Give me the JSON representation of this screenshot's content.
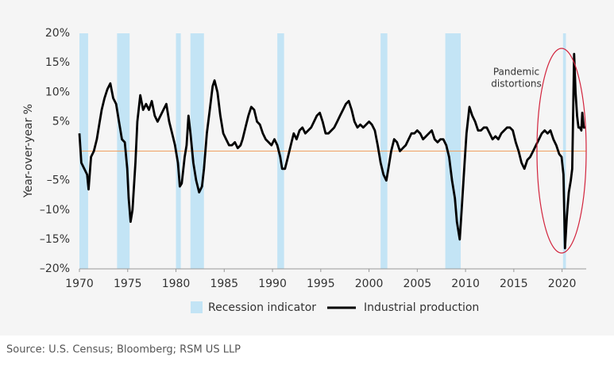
{
  "chart_data": {
    "type": "line",
    "y_axis_label": "Year-over-year %",
    "source": "Source: U.S. Census; Bloomberg; RSM US LLP",
    "annotation": [
      "Pandemic",
      "distortions"
    ],
    "xlim": [
      1970,
      2022.5
    ],
    "xticks": [
      1970,
      1975,
      1980,
      1985,
      1990,
      1995,
      2000,
      2005,
      2010,
      2015,
      2020
    ],
    "ylim": [
      -20,
      20
    ],
    "yticks": [
      {
        "value": 20,
        "label": "20%"
      },
      {
        "value": 15,
        "label": "15%"
      },
      {
        "value": 10,
        "label": "10%"
      },
      {
        "value": 5,
        "label": "5%"
      },
      {
        "value": -5,
        "label": "–5%"
      },
      {
        "value": -10,
        "label": "–10%"
      },
      {
        "value": -15,
        "label": "–15%"
      },
      {
        "value": -20,
        "label": "–20%"
      }
    ],
    "zero_line_color": "#f0a060",
    "recession_name": "Recession indicator",
    "recession_color": "#c3e4f5",
    "recessions": [
      [
        1970.0,
        1970.9
      ],
      [
        1973.9,
        1975.2
      ],
      [
        1980.0,
        1980.5
      ],
      [
        1981.5,
        1982.9
      ],
      [
        1990.5,
        1991.2
      ],
      [
        2001.2,
        2001.9
      ],
      [
        2007.9,
        2009.5
      ],
      [
        2020.1,
        2020.4
      ]
    ],
    "series": [
      {
        "name": "Industrial production",
        "color": "#000000",
        "x": [
          1970.0,
          1970.2,
          1970.5,
          1970.8,
          1970.95,
          1971.2,
          1971.5,
          1971.8,
          1972.0,
          1972.3,
          1972.6,
          1972.9,
          1973.2,
          1973.5,
          1973.8,
          1974.1,
          1974.4,
          1974.7,
          1974.95,
          1975.1,
          1975.3,
          1975.5,
          1975.8,
          1976.0,
          1976.3,
          1976.6,
          1976.9,
          1977.2,
          1977.5,
          1977.8,
          1978.1,
          1978.4,
          1978.7,
          1979.0,
          1979.3,
          1979.6,
          1979.9,
          1980.2,
          1980.4,
          1980.6,
          1980.9,
          1981.1,
          1981.3,
          1981.5,
          1981.8,
          1982.1,
          1982.4,
          1982.7,
          1982.9,
          1983.2,
          1983.5,
          1983.8,
          1984.0,
          1984.3,
          1984.6,
          1984.9,
          1985.2,
          1985.5,
          1985.8,
          1986.1,
          1986.4,
          1986.7,
          1986.9,
          1987.2,
          1987.5,
          1987.8,
          1988.1,
          1988.4,
          1988.7,
          1989.0,
          1989.3,
          1989.6,
          1989.9,
          1990.2,
          1990.5,
          1990.8,
          1991.0,
          1991.3,
          1991.6,
          1991.9,
          1992.2,
          1992.5,
          1992.8,
          1993.1,
          1993.4,
          1993.7,
          1994.0,
          1994.3,
          1994.6,
          1994.9,
          1995.2,
          1995.5,
          1995.8,
          1996.1,
          1996.4,
          1996.7,
          1997.0,
          1997.3,
          1997.6,
          1997.9,
          1998.2,
          1998.5,
          1998.8,
          1999.1,
          1999.4,
          1999.7,
          2000.0,
          2000.3,
          2000.6,
          2000.9,
          2001.2,
          2001.5,
          2001.8,
          2002.0,
          2002.3,
          2002.6,
          2002.9,
          2003.2,
          2003.5,
          2003.8,
          2004.1,
          2004.4,
          2004.7,
          2005.0,
          2005.3,
          2005.6,
          2005.9,
          2006.2,
          2006.5,
          2006.8,
          2007.1,
          2007.4,
          2007.7,
          2008.0,
          2008.3,
          2008.6,
          2008.9,
          2009.1,
          2009.4,
          2009.6,
          2009.9,
          2010.1,
          2010.4,
          2010.7,
          2011.0,
          2011.3,
          2011.6,
          2011.9,
          2012.2,
          2012.5,
          2012.8,
          2013.1,
          2013.4,
          2013.7,
          2014.0,
          2014.3,
          2014.6,
          2014.9,
          2015.2,
          2015.5,
          2015.8,
          2016.1,
          2016.4,
          2016.7,
          2017.0,
          2017.3,
          2017.6,
          2017.9,
          2018.2,
          2018.5,
          2018.8,
          2019.1,
          2019.4,
          2019.7,
          2019.95,
          2020.15,
          2020.3,
          2020.5,
          2020.7,
          2020.9,
          2021.05,
          2021.25,
          2021.4,
          2021.55,
          2021.7,
          2021.85,
          2022.0,
          2022.1,
          2022.25,
          2022.4
        ],
        "values": [
          3,
          -2,
          -3,
          -4,
          -6.5,
          -1,
          0,
          2,
          4,
          7,
          9,
          10.5,
          11.5,
          9,
          8,
          5,
          2,
          1.5,
          -3,
          -8,
          -12,
          -10,
          -2,
          5,
          9.5,
          7,
          8,
          7,
          8.5,
          6,
          5,
          6,
          7,
          8,
          5,
          3,
          1,
          -2,
          -6,
          -5.5,
          -1,
          1,
          6,
          3,
          -2,
          -5,
          -7,
          -6,
          -3,
          3,
          7,
          11,
          12,
          10,
          6,
          3,
          2,
          1,
          1,
          1.5,
          0.5,
          1,
          2,
          4,
          6,
          7.5,
          7,
          5,
          4.5,
          3,
          2,
          1.5,
          1,
          2,
          1,
          -1,
          -3,
          -3,
          -1,
          1,
          3,
          2,
          3.5,
          4,
          3,
          3.5,
          4,
          5,
          6,
          6.5,
          5,
          3,
          3,
          3.5,
          4,
          5,
          6,
          7,
          8,
          8.5,
          7,
          5,
          4,
          4.5,
          4,
          4.5,
          5,
          4.5,
          3.5,
          1,
          -2,
          -4,
          -5,
          -3,
          0,
          2,
          1.5,
          0,
          0.5,
          1,
          2,
          3,
          3,
          3.5,
          3,
          2,
          2.5,
          3,
          3.5,
          2,
          1.5,
          2,
          2,
          1,
          -1,
          -5,
          -8,
          -12,
          -15,
          -10,
          -2,
          3,
          7.5,
          6,
          5,
          3.5,
          3.5,
          4,
          4,
          3,
          2,
          2.5,
          2,
          3,
          3.5,
          4,
          4,
          3.5,
          1.5,
          0,
          -2,
          -3,
          -1.5,
          -1,
          0,
          1,
          2,
          3,
          3.5,
          3,
          3.5,
          2,
          1,
          -0.5,
          -1,
          -4,
          -16.5,
          -11,
          -7,
          -5,
          -3,
          16.5,
          10,
          6,
          4,
          4,
          3.5,
          6.5,
          4,
          4
        ]
      }
    ]
  }
}
